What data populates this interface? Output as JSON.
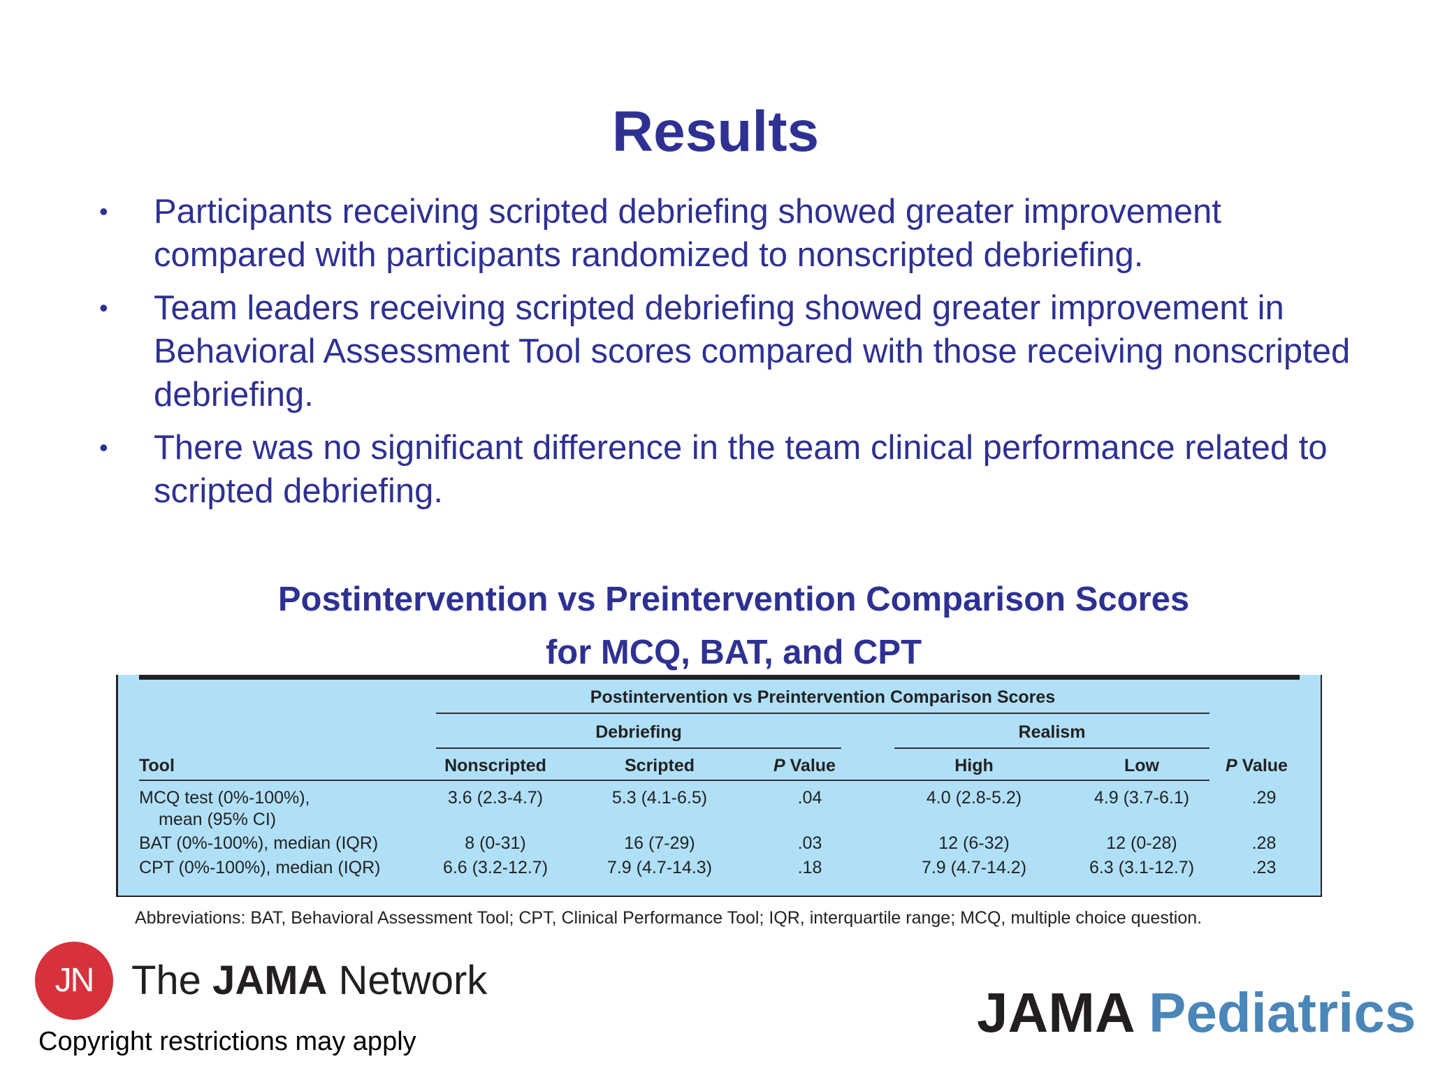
{
  "slide": {
    "title": "Results",
    "bullets": [
      "Participants receiving scripted debriefing showed greater improvement compared with participants randomized to nonscripted debriefing.",
      "Team leaders receiving scripted debriefing showed greater improvement in Behavioral Assessment Tool scores compared with those receiving nonscripted debriefing.",
      "There was no significant difference in the team clinical performance related to scripted debriefing."
    ],
    "table_heading_line1": "Postintervention vs Preintervention Comparison Scores",
    "table_heading_line2": "for MCQ, BAT, and CPT"
  },
  "table": {
    "spanner": "Postintervention vs Preintervention Comparison Scores",
    "group_debriefing": "Debriefing",
    "group_realism": "Realism",
    "columns": {
      "tool": "Tool",
      "nonscripted": "Nonscripted",
      "scripted": "Scripted",
      "p_value_prefix": "P",
      "p_value_suffix": "Value",
      "high": "High",
      "low": "Low"
    },
    "rows": [
      {
        "tool": "MCQ test (0%-100%),",
        "tool_line2": "mean (95% CI)",
        "nonscripted": "3.6 (2.3-4.7)",
        "scripted": "5.3 (4.1-6.5)",
        "p1": ".04",
        "high": "4.0 (2.8-5.2)",
        "low": "4.9 (3.7-6.1)",
        "p2": ".29"
      },
      {
        "tool": "BAT (0%-100%), median (IQR)",
        "nonscripted": "8 (0-31)",
        "scripted": "16 (7-29)",
        "p1": ".03",
        "high": "12 (6-32)",
        "low": "12 (0-28)",
        "p2": ".28"
      },
      {
        "tool": "CPT (0%-100%), median (IQR)",
        "nonscripted": "6.6 (3.2-12.7)",
        "scripted": "7.9 (4.7-14.3)",
        "p1": ".18",
        "high": "7.9 (4.7-14.2)",
        "low": "6.3 (3.1-12.7)",
        "p2": ".23"
      }
    ],
    "abbreviations": "Abbreviations: BAT, Behavioral Assessment Tool; CPT, Clinical Performance Tool; IQR, interquartile range; MCQ, multiple choice question."
  },
  "footer": {
    "jn_logo_text": "JN",
    "network_the": "The",
    "network_jama": "JAMA",
    "network_word": "Network",
    "copyright": "Copyright restrictions may apply",
    "brand_jama": "JAMA",
    "brand_pediatrics": "Pediatrics"
  },
  "colors": {
    "title": "#2e3192",
    "table_bg": "#b0e0f8",
    "jn_red": "#d7323c",
    "pediatrics_blue": "#4a86b8"
  }
}
